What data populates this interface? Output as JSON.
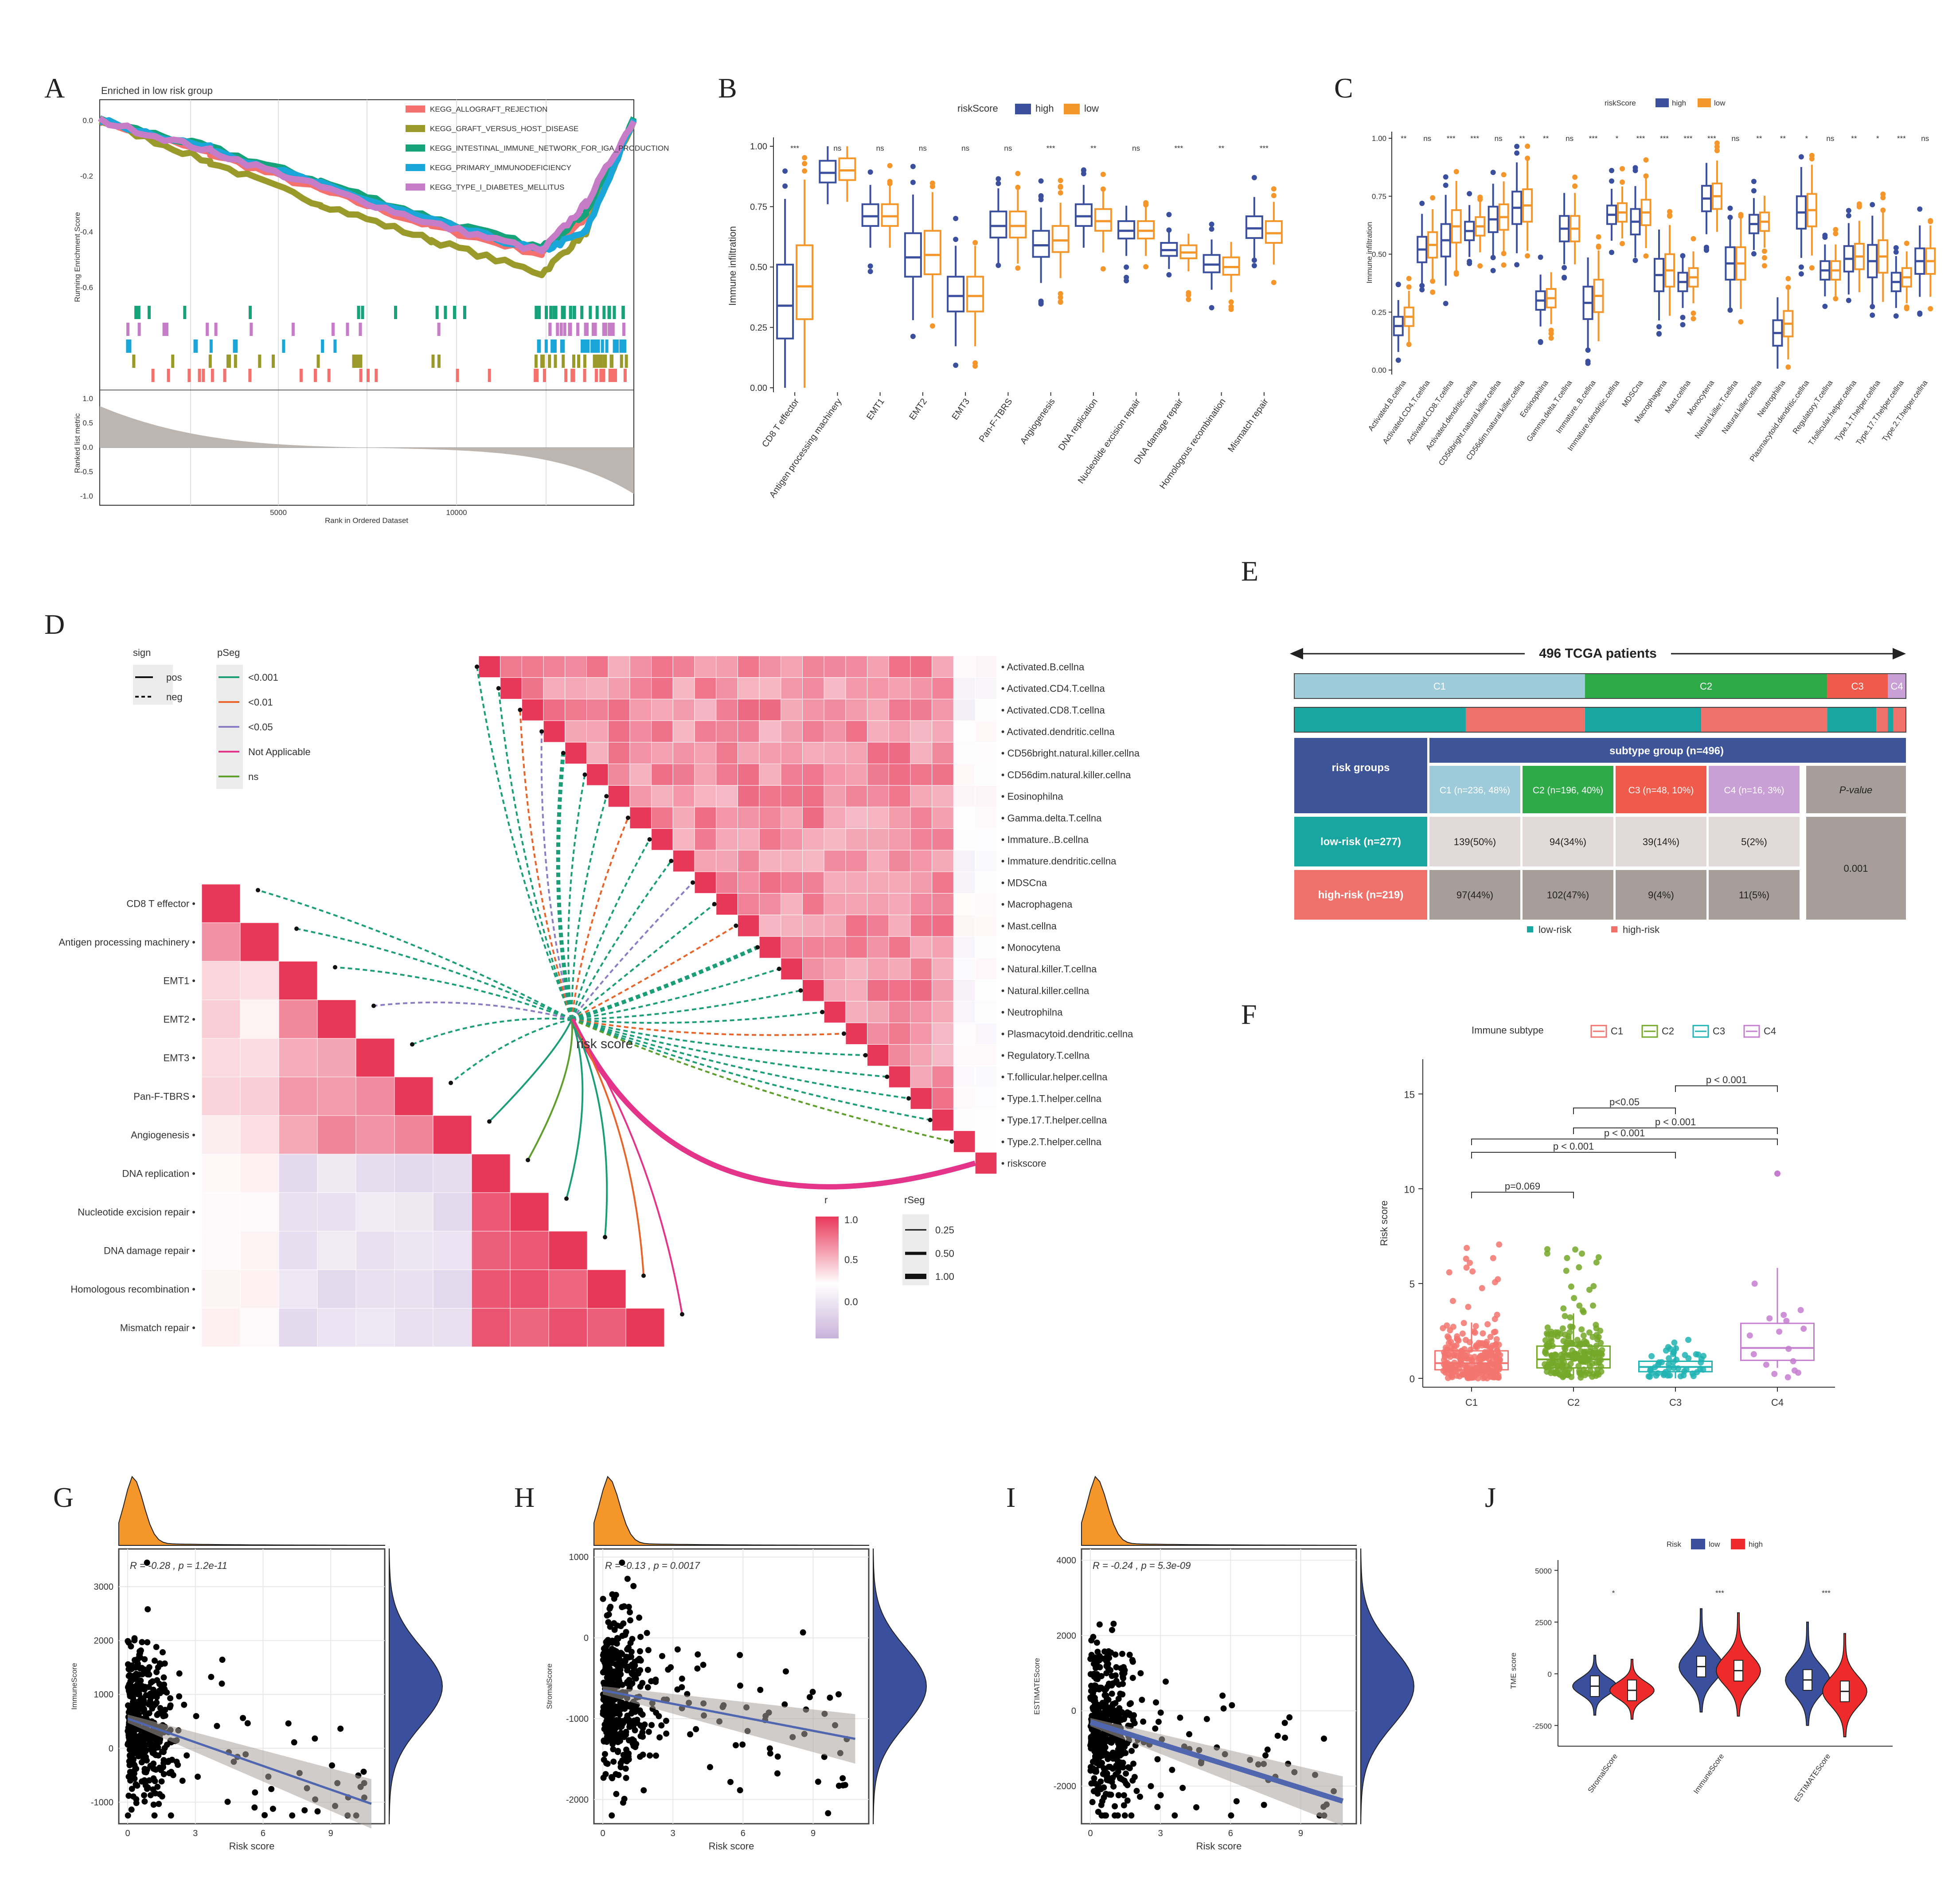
{
  "panels": {
    "A": {
      "letter": "A",
      "title": "Enriched in low risk group",
      "ylabel": "Running Enrichment Score",
      "ylabel2": "Ranked list metric",
      "xlabel": "Rank in Ordered Dataset",
      "xticks": [
        "5000",
        "10000"
      ],
      "yticks_es": [
        "0.0",
        "-0.2",
        "-0.4",
        "-0.6"
      ],
      "yticks_metric": [
        "1.0",
        "0.5",
        "0.0",
        "-0.5",
        "-1.0"
      ],
      "legend": [
        {
          "name": "KEGG_ALLOGRAFT_REJECTION",
          "color": "#f4716e"
        },
        {
          "name": "KEGG_GRAFT_VERSUS_HOST_DISEASE",
          "color": "#9a9a2a"
        },
        {
          "name": "KEGG_INTESTINAL_IMMUNE_NETWORK_FOR_IGA_PRODUCTION",
          "color": "#16a37a"
        },
        {
          "name": "KEGG_PRIMARY_IMMUNODEFICIENCY",
          "color": "#1aa6d9"
        },
        {
          "name": "KEGG_TYPE_I_DIABETES_MELLITUS",
          "color": "#c77cc8"
        }
      ]
    },
    "B": {
      "letter": "B",
      "legend_title": "riskScore",
      "legend": [
        "high",
        "low"
      ],
      "ylabel": "Immune infiltration",
      "yticks": [
        "0.00",
        "0.25",
        "0.50",
        "0.75",
        "1.00"
      ],
      "categories": [
        "CD8 T effector",
        "Antigen processing machinery",
        "EMT1",
        "EMT2",
        "EMT3",
        "Pan-F-TBRS",
        "Angiogenesis",
        "DNA replication",
        "Nucleotide excision repair",
        "DNA damage repair",
        "Homologous recombination",
        "Mismatch repair"
      ],
      "significance": [
        "***",
        "ns",
        "ns",
        "ns",
        "ns",
        "ns",
        "***",
        "**",
        "ns",
        "***",
        "**",
        "***"
      ]
    },
    "C": {
      "letter": "C",
      "legend_title": "riskScore",
      "legend": [
        "high",
        "low"
      ],
      "ylabel": "Immune infiltration",
      "yticks": [
        "0.00",
        "0.25",
        "0.50",
        "0.75",
        "1.00"
      ],
      "categories": [
        "Activated.B.cellna",
        "Activated.CD4.T.cellna",
        "Activated.CD8.T.cellna",
        "Activated.dendritic.cellna",
        "CD56bright.natural.killer.cellna",
        "CD56dim.natural.killer.cellna",
        "Eosinophilna",
        "Gamma.delta.T.cellna",
        "Immature..B.cellna",
        "Immature.dendritic.cellna",
        "MDSCna",
        "Macrophagena",
        "Mast.cellna",
        "Monocytena",
        "Natural.killer.T.cellna",
        "Natural.killer.cellna",
        "Neutrophilna",
        "Plasmacytoid.dendritic.cellna",
        "Regulatory.T.cellna",
        "T.follicular.helper.cellna",
        "Type.1.T.helper.cellna",
        "Type.17.T.helper.cellna",
        "Type.2.T.helper.cellna"
      ],
      "significance": [
        "**",
        "ns",
        "***",
        "***",
        "ns",
        "**",
        "**",
        "ns",
        "***",
        "*",
        "***",
        "***",
        "***",
        "***",
        "ns",
        "**",
        "**",
        "*",
        "ns",
        "**",
        "*",
        "***",
        "ns"
      ]
    },
    "D": {
      "letter": "D",
      "legend_sign_title": "sign",
      "legend_sign": [
        "pos",
        "neg"
      ],
      "legend_pseg_title": "pSeg",
      "legend_pseg": [
        {
          "label": "<0.001",
          "color": "#1b9e77"
        },
        {
          "label": "<0.01",
          "color": "#e8642a"
        },
        {
          "label": "<0.05",
          "color": "#8d7cc4"
        },
        {
          "label": "Not Applicable",
          "color": "#e4348a"
        },
        {
          "label": "ns",
          "color": "#5e9e2a"
        }
      ],
      "left_labels": [
        "CD8 T effector",
        "Antigen processing machinery",
        "EMT1",
        "EMT2",
        "EMT3",
        "Pan-F-TBRS",
        "Angiogenesis",
        "DNA replication",
        "Nucleotide excision repair",
        "DNA damage repair",
        "Homologous recombination",
        "Mismatch repair"
      ],
      "right_labels": [
        "Activated.B.cellna",
        "Activated.CD4.T.cellna",
        "Activated.CD8.T.cellna",
        "Activated.dendritic.cellna",
        "CD56bright.natural.killer.cellna",
        "CD56dim.natural.killer.cellna",
        "Eosinophilna",
        "Gamma.delta.T.cellna",
        "Immature..B.cellna",
        "Immature.dendritic.cellna",
        "MDSCna",
        "Macrophagena",
        "Mast.cellna",
        "Monocytena",
        "Natural.killer.T.cellna",
        "Natural.killer.cellna",
        "Neutrophilna",
        "Plasmacytoid.dendritic.cellna",
        "Regulatory.T.cellna",
        "T.follicular.helper.cellna",
        "Type.1.T.helper.cellna",
        "Type.17.T.helper.cellna",
        "Type.2.T.helper.cellna",
        "riskscore"
      ],
      "center_label": "risk score",
      "r_title": "r",
      "r_ticks": [
        "1.0",
        "0.5",
        "0.0"
      ],
      "rseg_title": "rSeg",
      "rseg_ticks": [
        "0.25",
        "0.50",
        "1.00"
      ]
    },
    "E": {
      "letter": "E",
      "header": "496 TCGA patients",
      "bar_labels": [
        "C1",
        "C2",
        "C3",
        "C4"
      ],
      "bar_fractions": [
        0.48,
        0.4,
        0.1,
        0.03
      ],
      "bar_colors": [
        "#9dcbd9",
        "#2eaa48",
        "#f05a4a",
        "#c9a0d6"
      ],
      "risk_fractions_by_subtype": [
        0.59,
        0.48,
        0.81,
        0.31
      ],
      "table": {
        "risk_groups_label": "risk groups",
        "subtype_header": "subtype group (n=496)",
        "cols": [
          "C1 (n=236, 48%)",
          "C2 (n=196, 40%)",
          "C3 (n=48, 10%)",
          "C4 (n=16, 3%)"
        ],
        "pvalue_header": "P-value",
        "rows": [
          {
            "label": "low-risk (n=277)",
            "cells": [
              "139(50%)",
              "94(34%)",
              "39(14%)",
              "5(2%)"
            ]
          },
          {
            "label": "high-risk (n=219)",
            "cells": [
              "97(44%)",
              "102(47%)",
              "9(4%)",
              "11(5%)"
            ]
          }
        ],
        "pvalue": "0.001"
      },
      "legend": [
        {
          "label": "low-risk",
          "color": "#1aa6a0"
        },
        {
          "label": "high-risk",
          "color": "#f0706a"
        }
      ]
    },
    "F": {
      "letter": "F",
      "legend_title": "Immune subtype",
      "legend": [
        {
          "label": "C1",
          "color": "#f3746f"
        },
        {
          "label": "C2",
          "color": "#74a828"
        },
        {
          "label": "C3",
          "color": "#20b3b3"
        },
        {
          "label": "C4",
          "color": "#c57dd0"
        }
      ],
      "ylabel": "Risk score",
      "yticks": [
        "0",
        "5",
        "10",
        "15"
      ],
      "categories": [
        "C1",
        "C2",
        "C3",
        "C4"
      ],
      "pvalues": [
        "p=0.069",
        "p < 0.001",
        "p < 0.001",
        "p < 0.001",
        "p<0.05",
        "p < 0.001"
      ]
    },
    "G": {
      "letter": "G",
      "stat": "R = -0.28 , p = 1.2e-11",
      "ylabel": "ImmuneScore",
      "xlabel": "Risk score",
      "xticks": [
        "0",
        "3",
        "6",
        "9"
      ],
      "yticks": [
        "-1000",
        "0",
        "1000",
        "2000",
        "3000"
      ]
    },
    "H": {
      "letter": "H",
      "stat": "R = -0.13 , p = 0.0017",
      "ylabel": "StromalScore",
      "xlabel": "Risk score",
      "xticks": [
        "0",
        "3",
        "6",
        "9"
      ],
      "yticks": [
        "-2000",
        "-1000",
        "0",
        "1000"
      ]
    },
    "I": {
      "letter": "I",
      "stat": "R = -0.24 , p = 5.3e-09",
      "ylabel": "ESTIMATEScore",
      "xlabel": "Risk score",
      "xticks": [
        "0",
        "3",
        "6",
        "9"
      ],
      "yticks": [
        "-2000",
        "0",
        "2000",
        "4000"
      ]
    },
    "J": {
      "letter": "J",
      "legend_title": "Risk",
      "legend": [
        {
          "label": "low",
          "color": "#3a4f9e"
        },
        {
          "label": "high",
          "color": "#ee2a2a"
        }
      ],
      "ylabel": "TME score",
      "yticks": [
        "5000",
        "2500",
        "0",
        "-2500"
      ],
      "categories": [
        "StromalScore",
        "ImmuneScore",
        "ESTIMATEScore"
      ],
      "significance": [
        "*",
        "***",
        "***"
      ]
    }
  },
  "chart_data": [
    {
      "type": "line",
      "panel": "A",
      "title": "Enriched in low risk group",
      "xlabel": "Rank in Ordered Dataset",
      "ylabel": "Running Enrichment Score",
      "x": [
        0,
        3000,
        6000,
        9000,
        12000,
        13200,
        14500
      ],
      "series": [
        {
          "name": "KEGG_ALLOGRAFT_REJECTION",
          "values": [
            0.0,
            -0.12,
            -0.25,
            -0.38,
            -0.48,
            -0.35,
            0.0
          ]
        },
        {
          "name": "KEGG_GRAFT_VERSUS_HOST_DISEASE",
          "values": [
            0.0,
            -0.15,
            -0.3,
            -0.43,
            -0.55,
            -0.4,
            0.0
          ]
        },
        {
          "name": "KEGG_INTESTINAL_IMMUNE_NETWORK_FOR_IGA_PRODUCTION",
          "values": [
            0.0,
            -0.1,
            -0.22,
            -0.35,
            -0.46,
            -0.33,
            0.0
          ]
        },
        {
          "name": "KEGG_PRIMARY_IMMUNODEFICIENCY",
          "values": [
            0.0,
            -0.1,
            -0.23,
            -0.36,
            -0.47,
            -0.4,
            0.0
          ]
        },
        {
          "name": "KEGG_TYPE_I_DIABETES_MELLITUS",
          "values": [
            0.0,
            -0.11,
            -0.24,
            -0.37,
            -0.47,
            -0.3,
            0.0
          ]
        }
      ]
    },
    {
      "type": "box",
      "panel": "B",
      "ylabel": "Immune infiltration",
      "ylim": [
        0,
        1
      ],
      "categories": [
        "CD8 T effector",
        "Antigen processing machinery",
        "EMT1",
        "EMT2",
        "EMT3",
        "Pan-F-TBRS",
        "Angiogenesis",
        "DNA replication",
        "Nucleotide excision repair",
        "DNA damage repair",
        "Homologous recombination",
        "Mismatch repair"
      ],
      "series": [
        {
          "name": "high",
          "median": [
            0.34,
            0.89,
            0.71,
            0.54,
            0.38,
            0.67,
            0.59,
            0.71,
            0.65,
            0.57,
            0.51,
            0.66
          ]
        },
        {
          "name": "low",
          "median": [
            0.42,
            0.9,
            0.71,
            0.55,
            0.38,
            0.67,
            0.61,
            0.69,
            0.65,
            0.56,
            0.5,
            0.64
          ]
        }
      ]
    },
    {
      "type": "box",
      "panel": "C",
      "ylabel": "Immune infiltration",
      "ylim": [
        0,
        1
      ],
      "categories": [
        "Activated.B.cellna",
        "Activated.CD4.T.cellna",
        "Activated.CD8.T.cellna",
        "Activated.dendritic.cellna",
        "CD56bright.natural.killer.cellna",
        "CD56dim.natural.killer.cellna",
        "Eosinophilna",
        "Gamma.delta.T.cellna",
        "Immature..B.cellna",
        "Immature.dendritic.cellna",
        "MDSCna",
        "Macrophagena",
        "Mast.cellna",
        "Monocytena",
        "Natural.killer.T.cellna",
        "Natural.killer.cellna",
        "Neutrophilna",
        "Plasmacytoid.dendritic.cellna",
        "Regulatory.T.cellna",
        "T.follicular.helper.cellna",
        "Type.1.T.helper.cellna",
        "Type.17.T.helper.cellna",
        "Type.2.T.helper.cellna"
      ],
      "series": [
        {
          "name": "high",
          "median": [
            0.19,
            0.52,
            0.56,
            0.6,
            0.65,
            0.7,
            0.3,
            0.61,
            0.29,
            0.67,
            0.64,
            0.41,
            0.38,
            0.74,
            0.46,
            0.63,
            0.16,
            0.68,
            0.43,
            0.48,
            0.47,
            0.38,
            0.47
          ]
        },
        {
          "name": "low",
          "median": [
            0.23,
            0.54,
            0.62,
            0.62,
            0.66,
            0.71,
            0.31,
            0.61,
            0.32,
            0.68,
            0.68,
            0.43,
            0.4,
            0.75,
            0.46,
            0.64,
            0.2,
            0.69,
            0.43,
            0.49,
            0.49,
            0.4,
            0.47
          ]
        }
      ]
    },
    {
      "type": "box",
      "panel": "F",
      "ylabel": "Risk score",
      "ylim": [
        0,
        18
      ],
      "categories": [
        "C1",
        "C2",
        "C3",
        "C4"
      ],
      "median": [
        0.8,
        1.0,
        0.6,
        1.6
      ],
      "q1": [
        0.45,
        0.55,
        0.35,
        0.95
      ],
      "q3": [
        1.45,
        1.7,
        0.9,
        2.9
      ]
    },
    {
      "type": "scatter",
      "panel": "G",
      "xlabel": "Risk score",
      "ylabel": "ImmuneScore",
      "xlim": [
        0,
        11
      ],
      "ylim": [
        -1400,
        3700
      ],
      "fit": {
        "x": [
          0,
          10.8
        ],
        "y": [
          550,
          -1030
        ]
      }
    },
    {
      "type": "scatter",
      "panel": "H",
      "xlabel": "Risk score",
      "ylabel": "StromalScore",
      "xlim": [
        0,
        11
      ],
      "ylim": [
        -2300,
        1100
      ],
      "fit": {
        "x": [
          0,
          10.8
        ],
        "y": [
          -650,
          -1250
        ]
      }
    },
    {
      "type": "scatter",
      "panel": "I",
      "xlabel": "Risk score",
      "ylabel": "ESTIMATEScore",
      "xlim": [
        0,
        11
      ],
      "ylim": [
        -3000,
        4300
      ],
      "fit": {
        "x": [
          0,
          10.8
        ],
        "y": [
          -300,
          -2400
        ]
      }
    },
    {
      "type": "violin",
      "panel": "J",
      "ylabel": "TME score",
      "ylim": [
        -3500,
        5500
      ],
      "categories": [
        "StromalScore",
        "ImmuneScore",
        "ESTIMATEScore"
      ],
      "series": [
        {
          "name": "low",
          "median": [
            -600,
            350,
            -300
          ]
        },
        {
          "name": "high",
          "median": [
            -800,
            150,
            -850
          ]
        }
      ]
    }
  ]
}
